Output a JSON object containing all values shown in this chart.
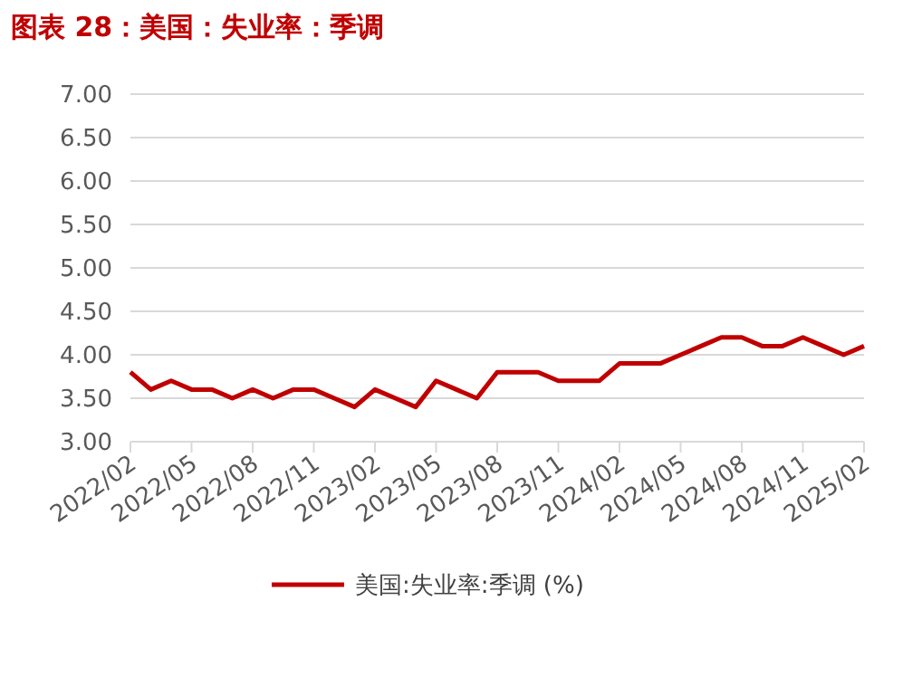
{
  "chart_data": {
    "type": "line",
    "title": "图表 28：美国：失业率：季调",
    "categories": [
      "2022/02",
      null,
      null,
      "2022/05",
      null,
      null,
      "2022/08",
      null,
      null,
      "2022/11",
      null,
      null,
      "2023/02",
      null,
      null,
      "2023/05",
      null,
      null,
      "2023/08",
      null,
      null,
      "2023/11",
      null,
      null,
      "2024/02",
      null,
      null,
      "2024/05",
      null,
      null,
      "2024/08",
      null,
      null,
      "2024/11",
      null,
      null,
      "2025/02"
    ],
    "series": [
      {
        "name": "美国:失业率:季调 (%)",
        "color": "#c00000",
        "values": [
          3.8,
          3.6,
          3.7,
          3.6,
          3.6,
          3.5,
          3.6,
          3.5,
          3.6,
          3.6,
          3.5,
          3.4,
          3.6,
          3.5,
          3.4,
          3.7,
          3.6,
          3.5,
          3.8,
          3.8,
          3.8,
          3.7,
          3.7,
          3.7,
          3.9,
          3.9,
          3.9,
          4.0,
          4.1,
          4.2,
          4.2,
          4.1,
          4.1,
          4.2,
          4.1,
          4.0,
          4.1
        ]
      }
    ],
    "ylim": [
      3,
      7
    ],
    "yticks": [
      {
        "value": 3,
        "label": "3.00"
      },
      {
        "value": 3.5,
        "label": "3.50"
      },
      {
        "value": 4,
        "label": "4.00"
      },
      {
        "value": 4.5,
        "label": "4.50"
      },
      {
        "value": 5,
        "label": "5.00"
      },
      {
        "value": 5.5,
        "label": "5.50"
      },
      {
        "value": 6,
        "label": "6.00"
      },
      {
        "value": 6.5,
        "label": "6.50"
      },
      {
        "value": 7,
        "label": "7.00"
      }
    ],
    "grid": "y",
    "legend": "bottom",
    "marker": "none",
    "line_style": "solid"
  }
}
